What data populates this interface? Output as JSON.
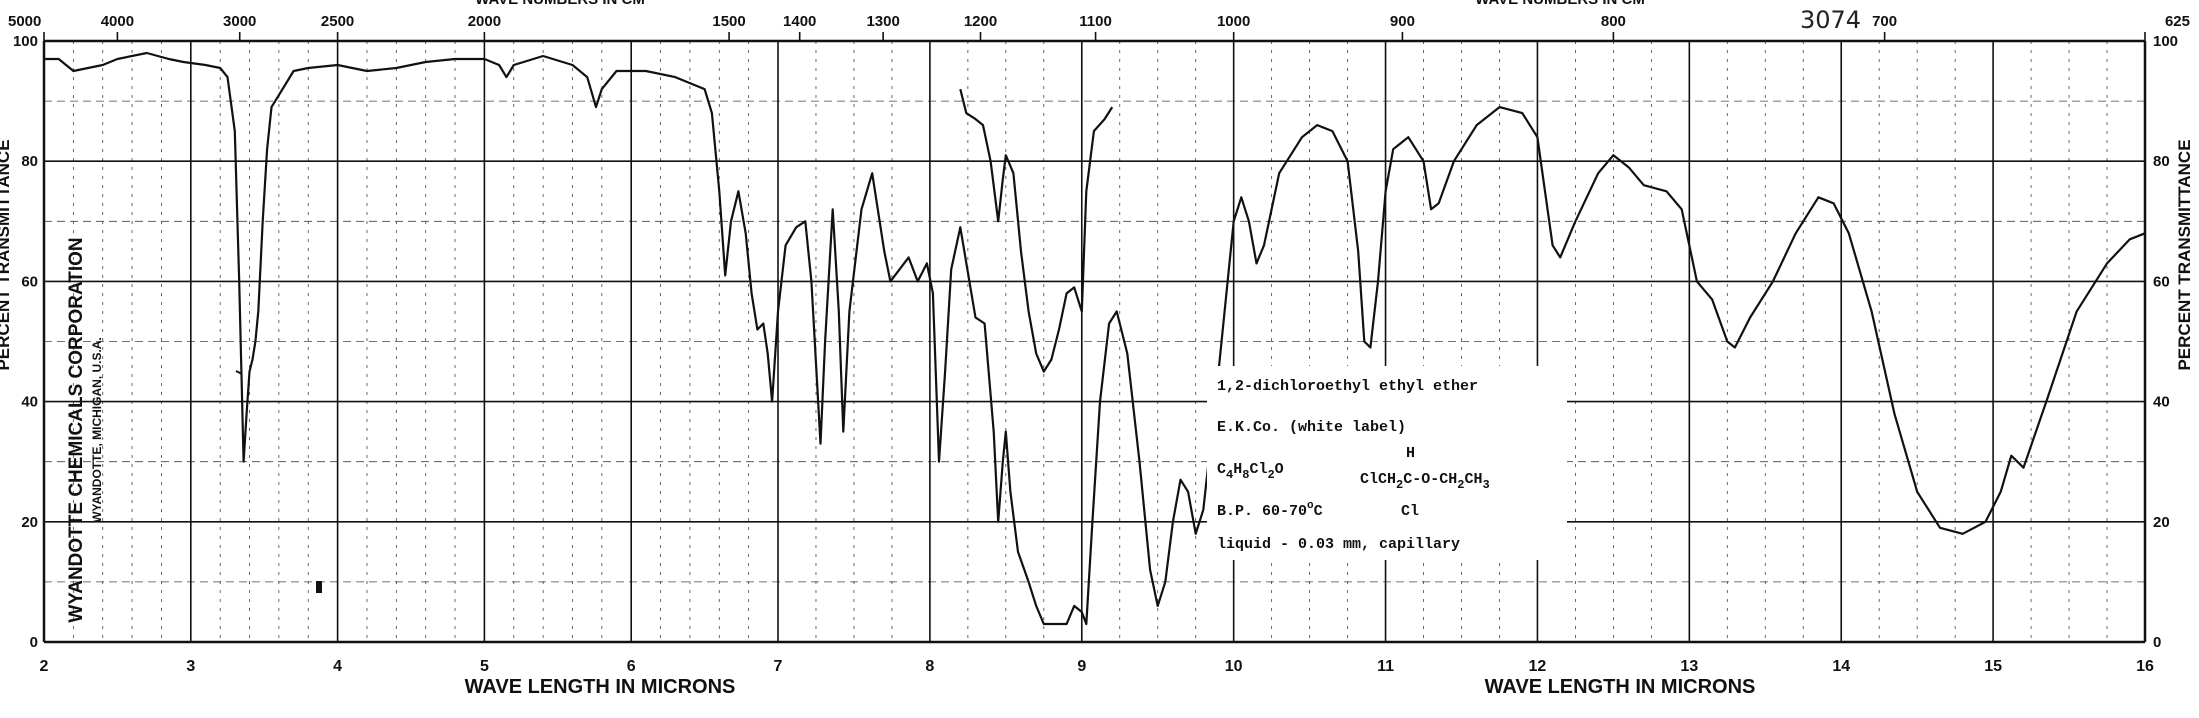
{
  "chart_data": {
    "type": "line",
    "title": "",
    "catalog_number": "3074",
    "xlabel": "WAVE LENGTH IN MICRONS",
    "xlabel_right": "WAVE LENGTH IN MICRONS",
    "top_axis_label_left": "WAVE NUMBERS IN CM",
    "top_axis_label_right": "WAVE NUMBERS IN CM",
    "ylabel_left": "PERCENT TRANSMITTANCE",
    "ylabel_right": "PERCENT TRANSMITTANCE",
    "xlim": [
      2,
      16
    ],
    "ylim": [
      0,
      100
    ],
    "x_scale_break_at": 7,
    "grid": true,
    "x_ticks": [
      "2",
      "3",
      "4",
      "5",
      "6",
      "7",
      "8",
      "9",
      "10",
      "11",
      "12",
      "13",
      "14",
      "15",
      "16"
    ],
    "y_ticks": [
      "0",
      "20",
      "40",
      "60",
      "80",
      "100"
    ],
    "y_ticks_right": [
      "0",
      "20",
      "40",
      "60",
      "80",
      "100"
    ],
    "top_ticks": [
      {
        "label": "5000",
        "um": 2.0
      },
      {
        "label": "4000",
        "um": 2.5
      },
      {
        "label": "3000",
        "um": 3.3333
      },
      {
        "label": "2500",
        "um": 4.0
      },
      {
        "label": "2000",
        "um": 5.0
      },
      {
        "label": "1500",
        "um": 6.6667
      },
      {
        "label": "1400",
        "um": 7.1429
      },
      {
        "label": "1300",
        "um": 7.6923
      },
      {
        "label": "1200",
        "um": 8.3333
      },
      {
        "label": "1100",
        "um": 9.0909
      },
      {
        "label": "1000",
        "um": 10.0
      },
      {
        "label": "900",
        "um": 11.1111
      },
      {
        "label": "800",
        "um": 12.5
      },
      {
        "label": "700",
        "um": 14.2857
      },
      {
        "label": "625",
        "um": 16.0
      }
    ],
    "series": [
      {
        "segment": "main",
        "points": [
          [
            2.0,
            97
          ],
          [
            2.1,
            97
          ],
          [
            2.2,
            95
          ],
          [
            2.3,
            95.5
          ],
          [
            2.4,
            96
          ],
          [
            2.5,
            97
          ],
          [
            2.7,
            98
          ],
          [
            2.85,
            97
          ],
          [
            2.95,
            96.5
          ],
          [
            3.1,
            96
          ],
          [
            3.2,
            95.5
          ],
          [
            3.25,
            94
          ],
          [
            3.3,
            85
          ],
          [
            3.33,
            60
          ],
          [
            3.36,
            30
          ],
          [
            3.38,
            38
          ],
          [
            3.4,
            45
          ],
          [
            3.42,
            47
          ],
          [
            3.44,
            50
          ],
          [
            3.46,
            55
          ],
          [
            3.49,
            70
          ],
          [
            3.52,
            82
          ],
          [
            3.55,
            89
          ],
          [
            3.6,
            91
          ],
          [
            3.7,
            95
          ],
          [
            3.8,
            95.5
          ],
          [
            4.0,
            96
          ],
          [
            4.2,
            95
          ],
          [
            4.4,
            95.5
          ],
          [
            4.6,
            96.5
          ],
          [
            4.8,
            97
          ],
          [
            5.0,
            97
          ],
          [
            5.1,
            96
          ],
          [
            5.15,
            94
          ],
          [
            5.2,
            96
          ],
          [
            5.4,
            97.5
          ],
          [
            5.6,
            96
          ],
          [
            5.7,
            94
          ],
          [
            5.76,
            89
          ],
          [
            5.8,
            92
          ],
          [
            5.9,
            95
          ],
          [
            6.1,
            95
          ],
          [
            6.3,
            94
          ],
          [
            6.4,
            93
          ],
          [
            6.5,
            92
          ],
          [
            6.55,
            88
          ],
          [
            6.6,
            75
          ],
          [
            6.64,
            61
          ],
          [
            6.68,
            70
          ],
          [
            6.73,
            75
          ],
          [
            6.78,
            68
          ],
          [
            6.82,
            58
          ],
          [
            6.86,
            52
          ],
          [
            6.9,
            53
          ],
          [
            6.93,
            48
          ],
          [
            6.96,
            40
          ],
          [
            7.0,
            55
          ],
          [
            7.05,
            66
          ],
          [
            7.12,
            69
          ],
          [
            7.18,
            70
          ],
          [
            7.22,
            60
          ],
          [
            7.28,
            33
          ],
          [
            7.31,
            50
          ],
          [
            7.36,
            72
          ],
          [
            7.4,
            55
          ],
          [
            7.43,
            35
          ],
          [
            7.47,
            55
          ],
          [
            7.55,
            72
          ],
          [
            7.62,
            78
          ],
          [
            7.7,
            65
          ],
          [
            7.74,
            60
          ],
          [
            7.8,
            62
          ],
          [
            7.86,
            64
          ],
          [
            7.92,
            60
          ],
          [
            7.98,
            63
          ],
          [
            8.02,
            58
          ],
          [
            8.06,
            30
          ],
          [
            8.1,
            45
          ],
          [
            8.14,
            62
          ],
          [
            8.2,
            69
          ],
          [
            8.26,
            60
          ],
          [
            8.3,
            54
          ],
          [
            8.36,
            53
          ],
          [
            8.42,
            35
          ],
          [
            8.45,
            20
          ],
          [
            8.48,
            30
          ],
          [
            8.5,
            35
          ],
          [
            8.53,
            25
          ],
          [
            8.58,
            15
          ],
          [
            8.65,
            10
          ],
          [
            8.7,
            6
          ],
          [
            8.75,
            3
          ],
          [
            8.9,
            3
          ],
          [
            8.95,
            6
          ],
          [
            9.0,
            5
          ],
          [
            9.03,
            3
          ],
          [
            9.07,
            20
          ],
          [
            9.12,
            40
          ],
          [
            9.18,
            53
          ],
          [
            9.23,
            55
          ],
          [
            9.3,
            48
          ],
          [
            9.38,
            30
          ],
          [
            9.45,
            12
          ],
          [
            9.5,
            6
          ],
          [
            9.55,
            10
          ],
          [
            9.6,
            20
          ],
          [
            9.65,
            27
          ],
          [
            9.7,
            25
          ],
          [
            9.75,
            18
          ],
          [
            9.8,
            22
          ],
          [
            9.9,
            45
          ],
          [
            10.0,
            70
          ],
          [
            10.05,
            74
          ],
          [
            10.1,
            70
          ],
          [
            10.15,
            63
          ],
          [
            10.2,
            66
          ],
          [
            10.3,
            78
          ],
          [
            10.45,
            84
          ],
          [
            10.55,
            86
          ],
          [
            10.65,
            85
          ],
          [
            10.75,
            80
          ],
          [
            10.82,
            65
          ],
          [
            10.86,
            50
          ],
          [
            10.9,
            49
          ],
          [
            10.95,
            60
          ],
          [
            11.0,
            75
          ],
          [
            11.05,
            82
          ],
          [
            11.15,
            84
          ],
          [
            11.25,
            80
          ],
          [
            11.3,
            72
          ],
          [
            11.35,
            73
          ],
          [
            11.45,
            80
          ],
          [
            11.6,
            86
          ],
          [
            11.75,
            89
          ],
          [
            11.9,
            88
          ],
          [
            12.0,
            84
          ],
          [
            12.05,
            75
          ],
          [
            12.1,
            66
          ],
          [
            12.15,
            64
          ],
          [
            12.25,
            70
          ],
          [
            12.4,
            78
          ],
          [
            12.5,
            81
          ],
          [
            12.6,
            79
          ],
          [
            12.7,
            76
          ],
          [
            12.85,
            75
          ],
          [
            12.95,
            72
          ],
          [
            13.05,
            60
          ],
          [
            13.15,
            57
          ],
          [
            13.25,
            50
          ],
          [
            13.3,
            49
          ],
          [
            13.4,
            54
          ],
          [
            13.55,
            60
          ],
          [
            13.7,
            68
          ],
          [
            13.85,
            74
          ],
          [
            13.95,
            73
          ],
          [
            14.05,
            68
          ],
          [
            14.2,
            55
          ],
          [
            14.35,
            38
          ],
          [
            14.5,
            25
          ],
          [
            14.65,
            19
          ],
          [
            14.8,
            18
          ],
          [
            14.95,
            20
          ],
          [
            15.05,
            25
          ],
          [
            15.12,
            31
          ],
          [
            15.2,
            29
          ],
          [
            15.35,
            40
          ],
          [
            15.55,
            55
          ],
          [
            15.75,
            63
          ],
          [
            15.9,
            67
          ],
          [
            16.0,
            68
          ]
        ]
      },
      {
        "segment": "overlay",
        "points": [
          [
            8.2,
            92
          ],
          [
            8.24,
            88
          ],
          [
            8.3,
            87
          ],
          [
            8.35,
            86
          ],
          [
            8.4,
            80
          ],
          [
            8.45,
            70
          ],
          [
            8.48,
            77
          ],
          [
            8.5,
            81
          ],
          [
            8.55,
            78
          ],
          [
            8.6,
            65
          ],
          [
            8.65,
            55
          ],
          [
            8.7,
            48
          ],
          [
            8.75,
            45
          ],
          [
            8.8,
            47
          ],
          [
            8.85,
            52
          ],
          [
            8.9,
            58
          ],
          [
            8.95,
            59
          ],
          [
            9.0,
            55
          ],
          [
            9.03,
            75
          ],
          [
            9.08,
            85
          ],
          [
            9.15,
            87
          ],
          [
            9.2,
            89
          ]
        ]
      }
    ],
    "annotations": {
      "sample_lines": [
        "1,2-dichloroethyl ethyl ether",
        "E.K.Co. (white label)"
      ],
      "formula": {
        "C": "C",
        "C_sub": "4",
        "H": "H",
        "H_sub": "8",
        "Cl": "Cl",
        "Cl_sub": "2",
        "O": "O"
      },
      "structure": {
        "h_above": "H",
        "part1": "ClCH",
        "sub1": "2",
        "part2": "C-O-CH",
        "sub2": "2",
        "part3": "CH",
        "sub3": "3",
        "cl_below": "Cl"
      },
      "bp": {
        "prefix": "B.P. 60-70",
        "deg": "o",
        "suffix": "C"
      },
      "conditions": "liquid - 0.03 mm,  capillary"
    },
    "logo_lines": [
      "WYANDOTTE CHEMICALS CORPORATION",
      "WYANDOTTE, MICHIGAN, U.S.A."
    ]
  }
}
